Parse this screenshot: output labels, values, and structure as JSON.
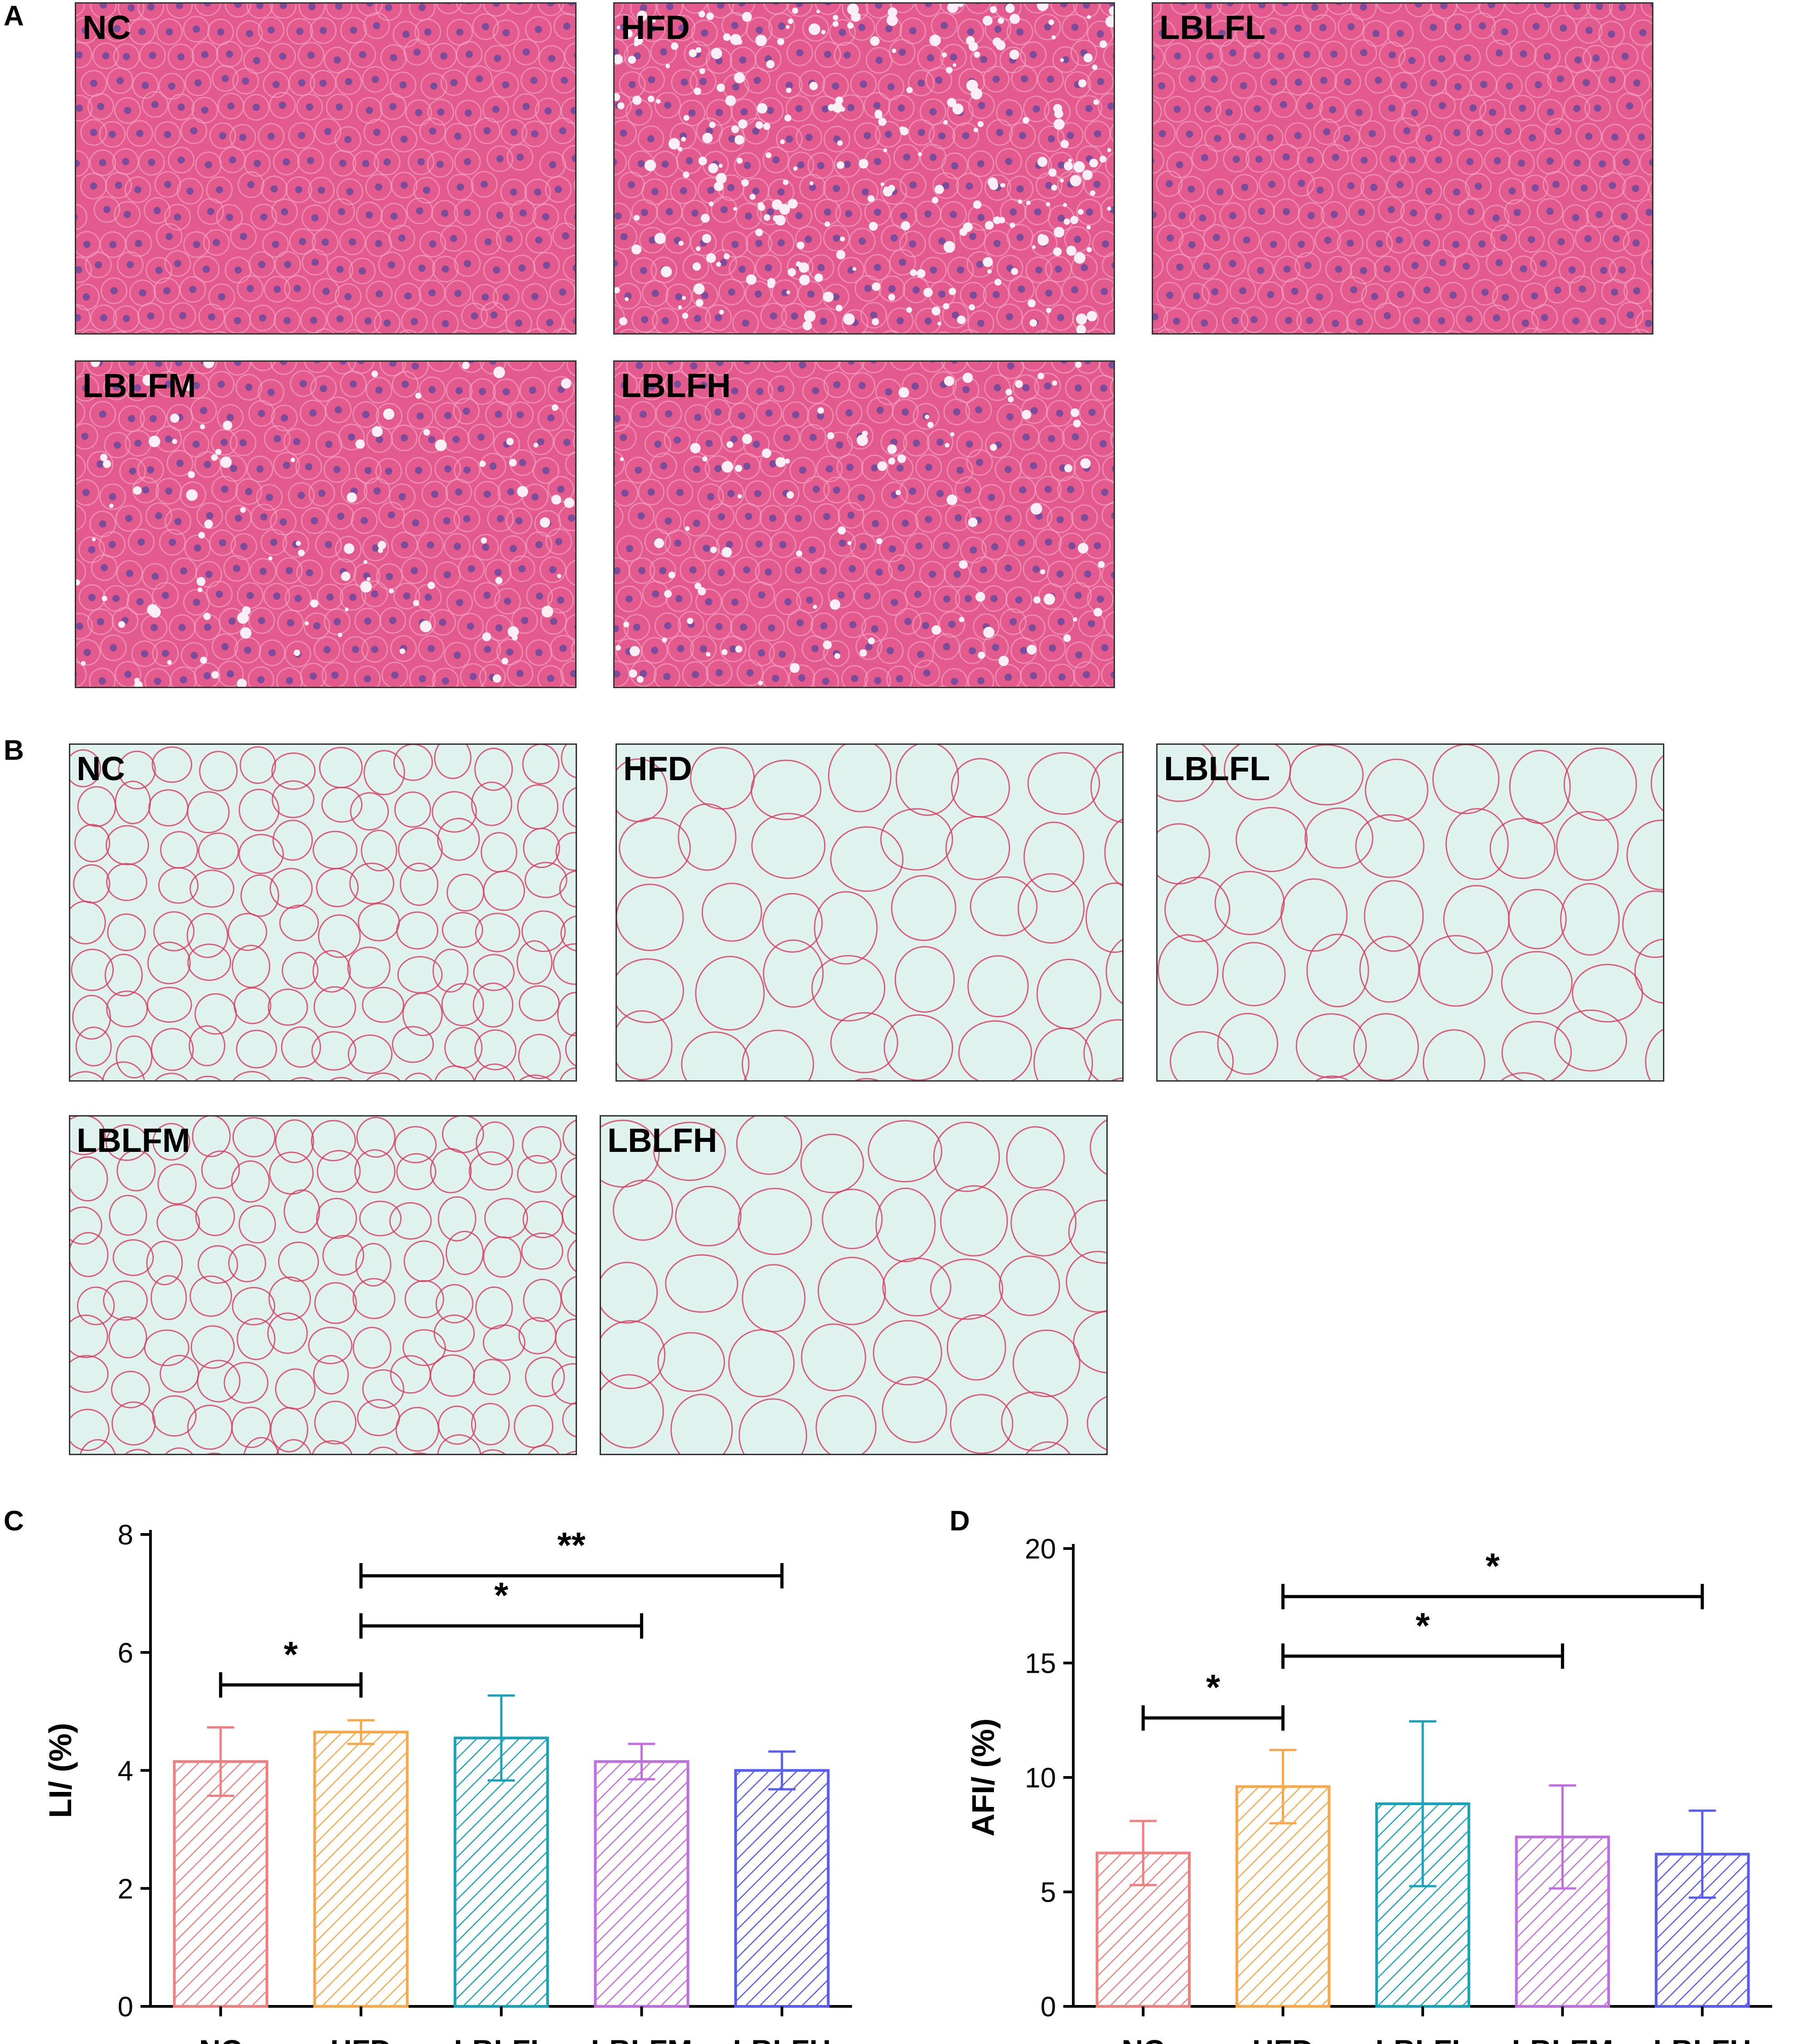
{
  "panels": {
    "a": {
      "letter": "A",
      "images": [
        {
          "label": "NC"
        },
        {
          "label": "HFD"
        },
        {
          "label": "LBLFL"
        },
        {
          "label": "LBLFM"
        },
        {
          "label": "LBLFH"
        }
      ]
    },
    "b": {
      "letter": "B",
      "images": [
        {
          "label": "NC"
        },
        {
          "label": "HFD"
        },
        {
          "label": "LBLFL"
        },
        {
          "label": "LBLFM"
        },
        {
          "label": "LBLFH"
        }
      ]
    },
    "c": {
      "letter": "C"
    },
    "d": {
      "letter": "D"
    }
  },
  "chart_data": [
    {
      "type": "bar",
      "panel": "C",
      "categories": [
        "NC",
        "HFD",
        "LBLFL",
        "LBLFM",
        "LBLFH"
      ],
      "values": [
        4.15,
        4.65,
        4.55,
        4.15,
        4.0
      ],
      "errors": [
        0.58,
        0.2,
        0.72,
        0.3,
        0.32
      ],
      "colors": [
        "#f08080",
        "#f7a84a",
        "#1aa3b8",
        "#c06ee0",
        "#5a5cf0"
      ],
      "fill": "diagonal hatch",
      "ylabel": "LI/ (%)",
      "ylim": [
        0,
        8
      ],
      "yticks": [
        0,
        2,
        4,
        6,
        8
      ],
      "significance": [
        {
          "from": "NC",
          "to": "HFD",
          "label": "*",
          "level": 5.45
        },
        {
          "from": "HFD",
          "to": "LBLFM",
          "label": "*",
          "level": 6.45
        },
        {
          "from": "HFD",
          "to": "LBLFH",
          "label": "**",
          "level": 7.3
        }
      ]
    },
    {
      "type": "bar",
      "panel": "D",
      "categories": [
        "NC",
        "HFD",
        "LBLFL",
        "LBLFM",
        "LBLFH"
      ],
      "values": [
        6.7,
        9.6,
        8.85,
        7.4,
        6.65
      ],
      "errors": [
        1.4,
        1.6,
        3.6,
        2.25,
        1.9
      ],
      "colors": [
        "#f08080",
        "#f7a84a",
        "#1aa3b8",
        "#c06ee0",
        "#5a5cf0"
      ],
      "fill": "diagonal hatch",
      "ylabel": "AFI/ (%)",
      "ylim": [
        0,
        20
      ],
      "yticks": [
        0,
        5,
        10,
        15,
        20
      ],
      "significance": [
        {
          "from": "NC",
          "to": "HFD",
          "label": "*",
          "level": 12.6
        },
        {
          "from": "HFD",
          "to": "LBLFM",
          "label": "*",
          "level": 15.3
        },
        {
          "from": "HFD",
          "to": "LBLFH",
          "label": "*",
          "level": 17.9
        }
      ]
    }
  ]
}
